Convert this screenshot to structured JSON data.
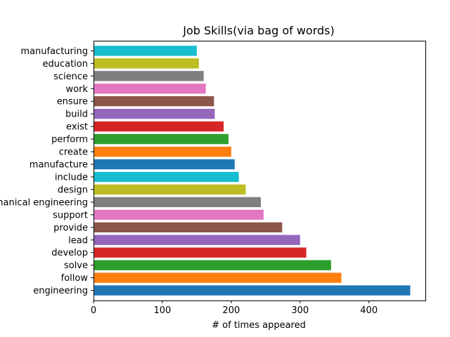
{
  "chart_data": {
    "type": "bar",
    "orientation": "horizontal",
    "title": "Job Skills(via bag of words)",
    "xlabel": "# of times appeared",
    "ylabel": "",
    "xlim": [
      0,
      482
    ],
    "xticks": [
      "0",
      "100",
      "200",
      "300",
      "400"
    ],
    "grid": false,
    "legend": "none",
    "categories": [
      "engineering",
      "follow",
      "solve",
      "develop",
      "lead",
      "provide",
      "support",
      "mechanical engineering",
      "design",
      "include",
      "manufacture",
      "create",
      "perform",
      "exist",
      "build",
      "ensure",
      "work",
      "science",
      "education",
      "manufacturing"
    ],
    "values": [
      460,
      360,
      345,
      309,
      300,
      274,
      247,
      243,
      221,
      211,
      205,
      200,
      196,
      189,
      176,
      175,
      163,
      160,
      153,
      150
    ],
    "colors": [
      "#1f77b4",
      "#ff7f0e",
      "#2ca02c",
      "#d62728",
      "#9467bd",
      "#8c564b",
      "#e377c2",
      "#7f7f7f",
      "#bcbd22",
      "#17becf",
      "#1f77b4",
      "#ff7f0e",
      "#2ca02c",
      "#d62728",
      "#9467bd",
      "#8c564b",
      "#e377c2",
      "#7f7f7f",
      "#bcbd22",
      "#17becf"
    ]
  }
}
